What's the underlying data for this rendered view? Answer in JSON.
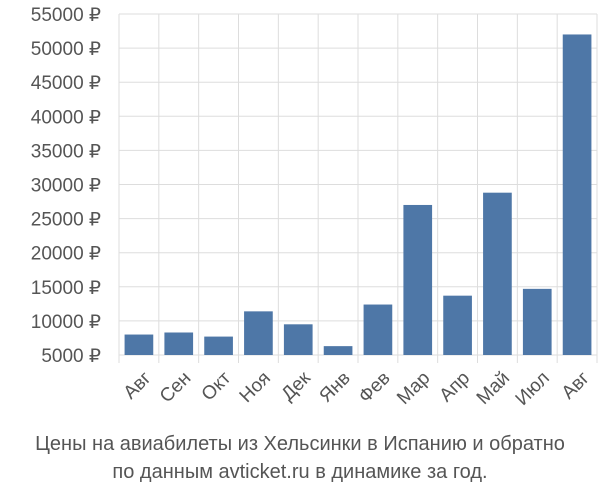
{
  "chart_data": {
    "type": "bar",
    "categories": [
      "Авг",
      "Сен",
      "Окт",
      "Ноя",
      "Дек",
      "Янв",
      "Фев",
      "Мар",
      "Апр",
      "Май",
      "Июл",
      "Авг"
    ],
    "values": [
      8000,
      8300,
      7700,
      11400,
      9500,
      6300,
      12400,
      27000,
      13700,
      28800,
      14700,
      52000
    ],
    "ylim": [
      5000,
      55000
    ],
    "yticks": [
      5000,
      10000,
      15000,
      20000,
      25000,
      30000,
      35000,
      40000,
      45000,
      50000,
      55000
    ],
    "ytick_labels": [
      "5000 ₽",
      "10000 ₽",
      "15000 ₽",
      "20000 ₽",
      "25000 ₽",
      "30000 ₽",
      "35000 ₽",
      "40000 ₽",
      "45000 ₽",
      "50000 ₽",
      "55000 ₽"
    ],
    "grid": true,
    "bar_color": "#4e77a7"
  },
  "caption": {
    "line1": "Цены на авиабилеты из Хельсинки в Испанию и обратно",
    "line2": "по данным avticket.ru в динамике за год."
  }
}
